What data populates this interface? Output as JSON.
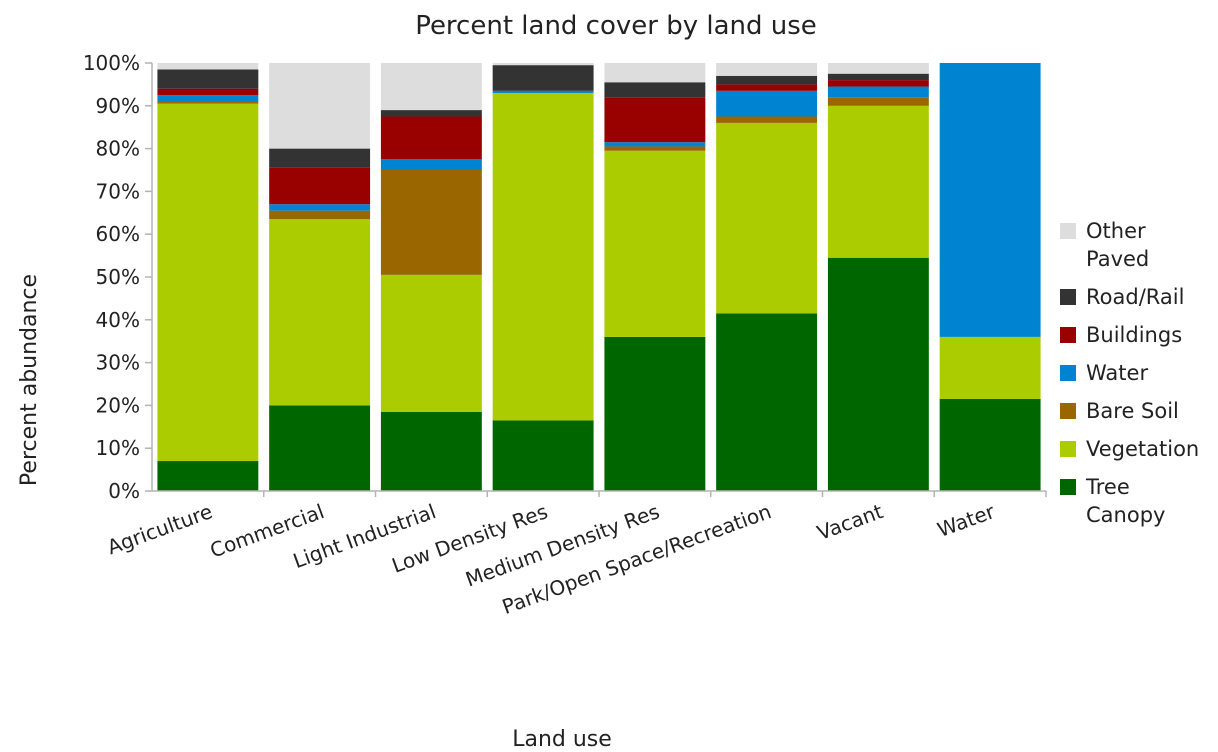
{
  "chart_data": {
    "type": "bar",
    "stacked": true,
    "title": "Percent land cover by land use",
    "xlabel": "Land use",
    "ylabel": "Percent abundance",
    "ylim": [
      0,
      100
    ],
    "y_ticks": [
      "0%",
      "10%",
      "20%",
      "30%",
      "40%",
      "50%",
      "60%",
      "70%",
      "80%",
      "90%",
      "100%"
    ],
    "grid": false,
    "legend_position": "right",
    "categories": [
      "Agriculture",
      "Commercial",
      "Light Industrial",
      "Low Density Res",
      "Medium Density Res",
      "Park/Open Space/Recreation",
      "Vacant",
      "Water"
    ],
    "series": [
      {
        "name": "Tree Canopy",
        "color": "#006600",
        "values": [
          7,
          20,
          18.5,
          16.5,
          36,
          41.5,
          54.5,
          21.5
        ]
      },
      {
        "name": "Vegetation",
        "color": "#aacc00",
        "values": [
          83.5,
          43.5,
          32,
          76.5,
          43.5,
          44.5,
          35.5,
          14.5
        ]
      },
      {
        "name": "Bare Soil",
        "color": "#996600",
        "values": [
          0.5,
          2,
          24.5,
          0,
          1,
          1.5,
          2,
          0
        ]
      },
      {
        "name": "Water",
        "color": "#0084d1",
        "values": [
          1.5,
          1.5,
          2.5,
          0.5,
          1,
          6,
          2.5,
          64
        ]
      },
      {
        "name": "Buildings",
        "color": "#990000",
        "values": [
          1.5,
          8.5,
          10,
          0,
          10.5,
          1.5,
          1.5,
          0
        ]
      },
      {
        "name": "Road/Rail",
        "color": "#333333",
        "values": [
          4.5,
          4.5,
          1.5,
          6,
          3.5,
          2,
          1.5,
          0
        ]
      },
      {
        "name": "Other Paved",
        "color": "#dddddd",
        "values": [
          1.5,
          20,
          11,
          0.5,
          4.5,
          3,
          2.5,
          0
        ]
      }
    ]
  }
}
